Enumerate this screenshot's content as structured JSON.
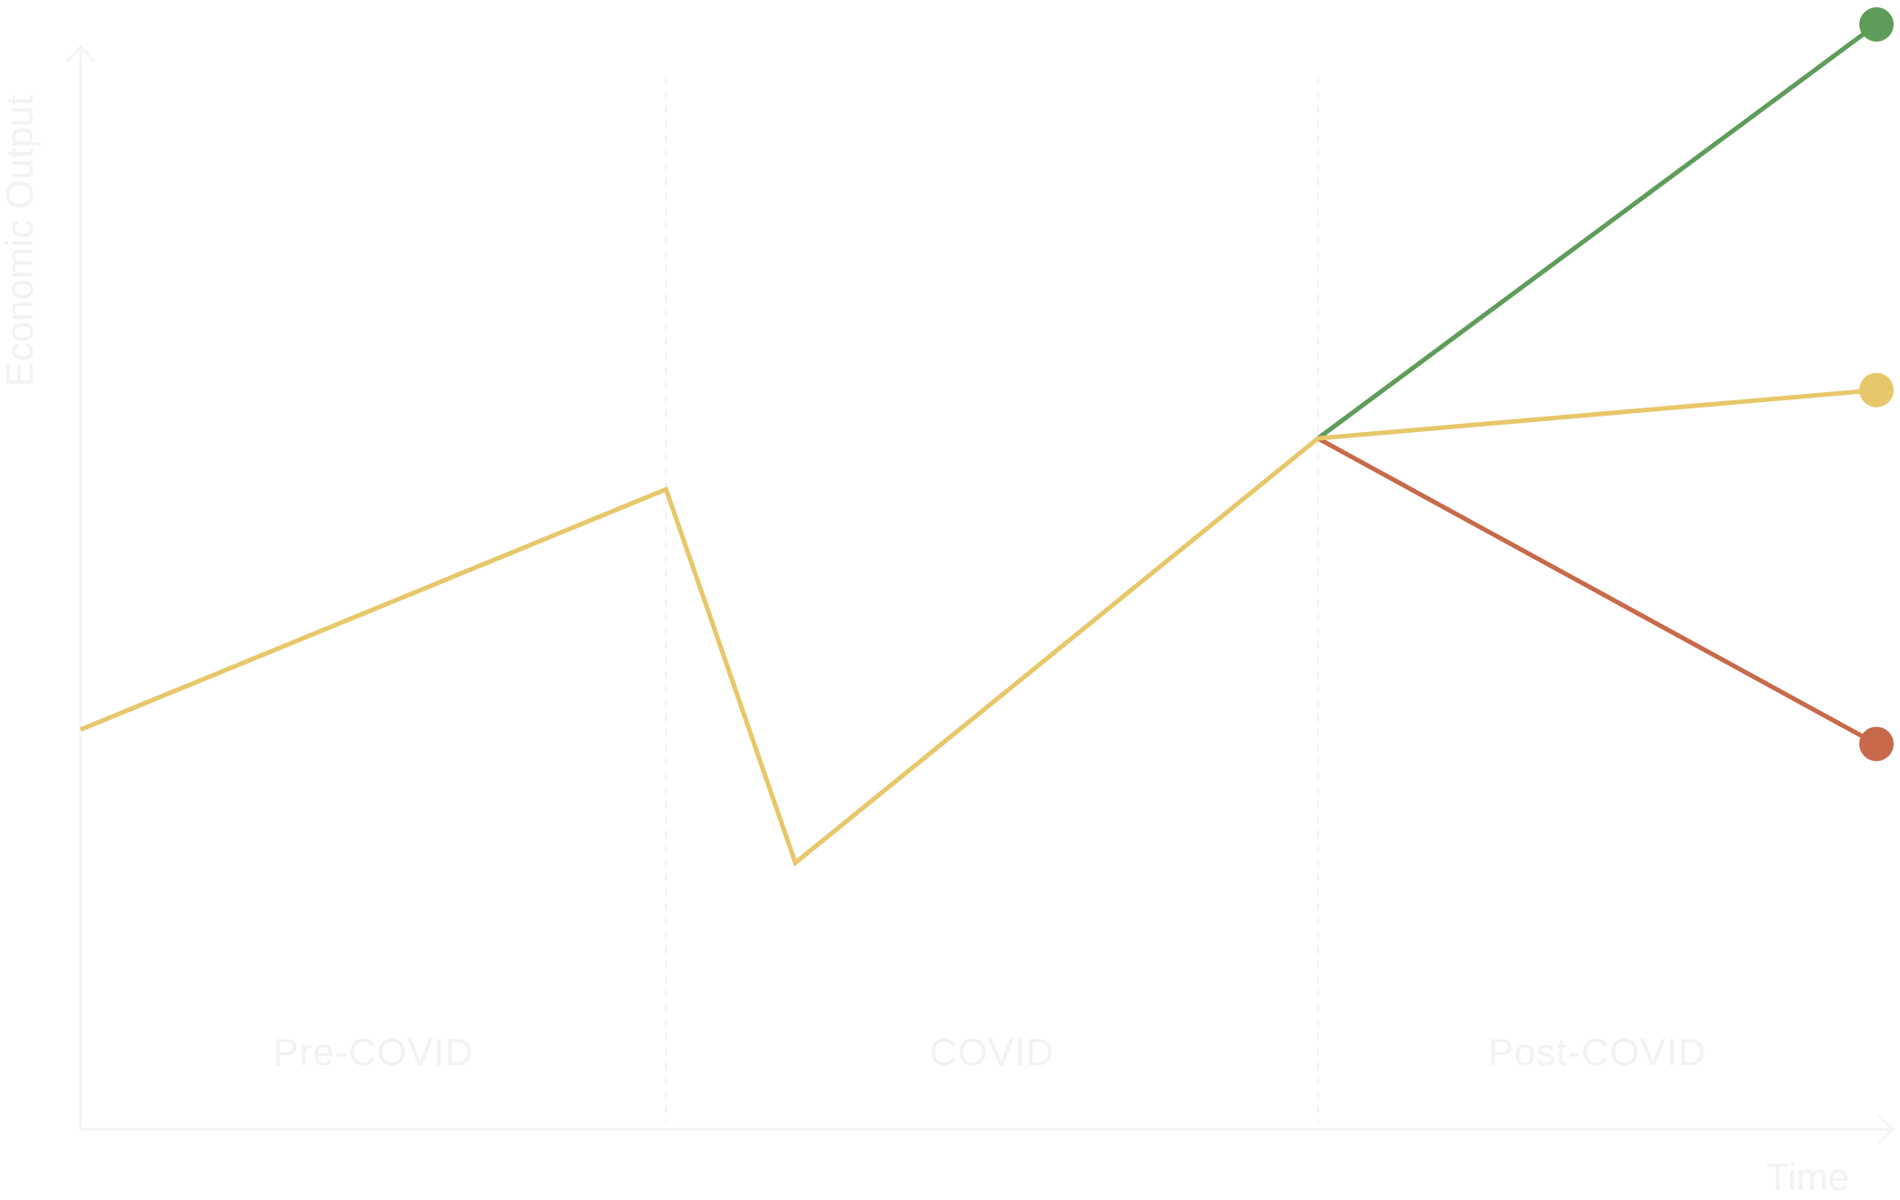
{
  "chart_data": {
    "type": "line",
    "title": "",
    "xlabel": "Time",
    "ylabel": "Economic Output",
    "grid": false,
    "legend": "none",
    "xlim": [
      0,
      100
    ],
    "ylim": [
      0,
      100
    ],
    "phases": [
      {
        "label": "Pre-COVID",
        "start": 0,
        "end": 32.6
      },
      {
        "label": "COVID",
        "start": 32.6,
        "end": 68.9
      },
      {
        "label": "Post-COVID",
        "start": 68.9,
        "end": 100
      }
    ],
    "series": [
      {
        "color": "#e8c76a",
        "x": [
          0,
          32.6,
          39.8,
          68.9,
          100
        ],
        "y": [
          46,
          64.4,
          35.8,
          68.3,
          72
        ],
        "end_marker": true
      },
      {
        "color": "#5e9c5a",
        "x": [
          68.9,
          100
        ],
        "y": [
          68.3,
          100
        ],
        "end_marker": true
      },
      {
        "color": "#c8694a",
        "x": [
          68.9,
          100
        ],
        "y": [
          68.3,
          44.9
        ],
        "end_marker": true
      }
    ]
  }
}
